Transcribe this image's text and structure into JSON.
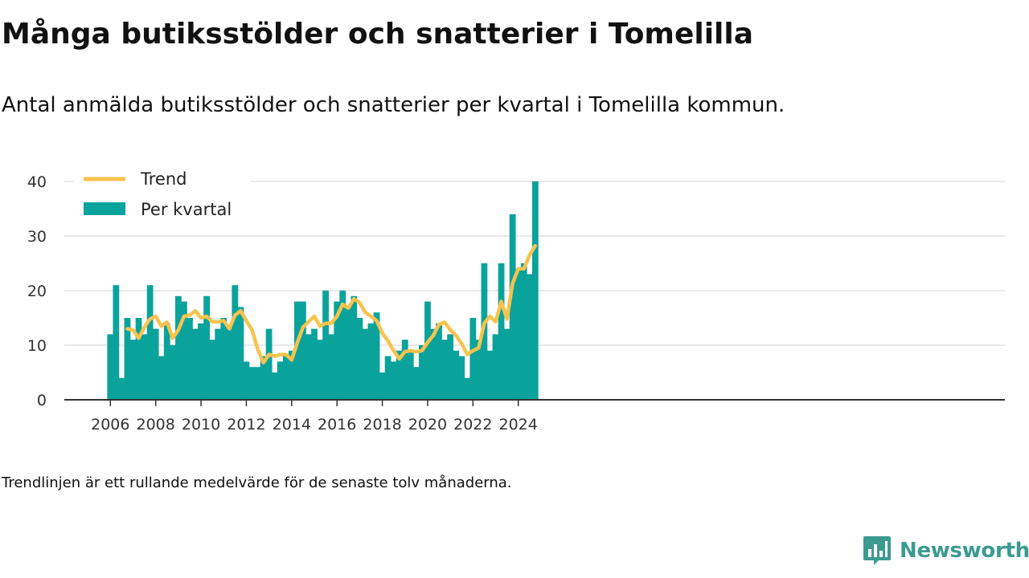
{
  "header": {
    "title": "Många butiksstölder och snatterier i Tomelilla",
    "subtitle": "Antal anmälda butiksstölder och snatterier per kvartal i Tomelilla kommun."
  },
  "footer": {
    "note": "Trendlinjen är ett rullande medelvärde för de senaste tolv månaderna.",
    "brand": "Newsworthy"
  },
  "colors": {
    "bars": "#0aa39c",
    "trend": "#f7c34d",
    "brand": "#3b9b8f"
  },
  "icons": {
    "brand_logo": "bar-chart-speech-bubble-icon"
  },
  "chart_data": {
    "type": "bar",
    "title": "",
    "xlabel": "",
    "ylabel": "",
    "ylim": [
      0,
      40
    ],
    "y_ticks": [
      "0",
      "10",
      "20",
      "30",
      "40"
    ],
    "x_ticks": [
      "2006",
      "2008",
      "2010",
      "2012",
      "2014",
      "2016",
      "2018",
      "2020",
      "2022",
      "2024"
    ],
    "grid": "horizontal",
    "legend_position": "top-left",
    "series": [
      {
        "name": "Per kvartal",
        "kind": "bar",
        "values": [
          12,
          21,
          4,
          15,
          11,
          15,
          12,
          21,
          13,
          8,
          14,
          10,
          19,
          18,
          15,
          13,
          14,
          19,
          11,
          13,
          15,
          13,
          21,
          17,
          7,
          6,
          6,
          8,
          13,
          5,
          7,
          8,
          9,
          18,
          18,
          12,
          13,
          11,
          20,
          12,
          18,
          20,
          17,
          19,
          15,
          13,
          14,
          16,
          5,
          8,
          7,
          9,
          11,
          9,
          6,
          10,
          18,
          13,
          14,
          11,
          12,
          9,
          8,
          4,
          15,
          11,
          25,
          9,
          12,
          25,
          13,
          34,
          24,
          25,
          23,
          40
        ]
      },
      {
        "name": "Trend",
        "kind": "line",
        "start_index": 3,
        "values": [
          13,
          12.8,
          11.3,
          13.3,
          14.8,
          15.3,
          13.5,
          14.2,
          11.3,
          12.8,
          15.3,
          15.5,
          16.3,
          15,
          15.3,
          14.3,
          14.3,
          14.5,
          13,
          15.5,
          16.3,
          14.5,
          12.8,
          9.3,
          6.8,
          8.3,
          8,
          8.3,
          8.3,
          7.3,
          10.5,
          13.3,
          14.3,
          15.3,
          13.5,
          14,
          14,
          15.3,
          17.5,
          16.8,
          18.5,
          17.8,
          16,
          15.3,
          14.5,
          12.2,
          10.8,
          9,
          7.5,
          8.8,
          9,
          8.8,
          9,
          10.5,
          11.8,
          13.8,
          14.2,
          12.8,
          11.8,
          10.3,
          8.3,
          9,
          9.5,
          14,
          15.3,
          14.3,
          18,
          14.8,
          21.3,
          24,
          24,
          26.5,
          28.2
        ]
      }
    ]
  }
}
